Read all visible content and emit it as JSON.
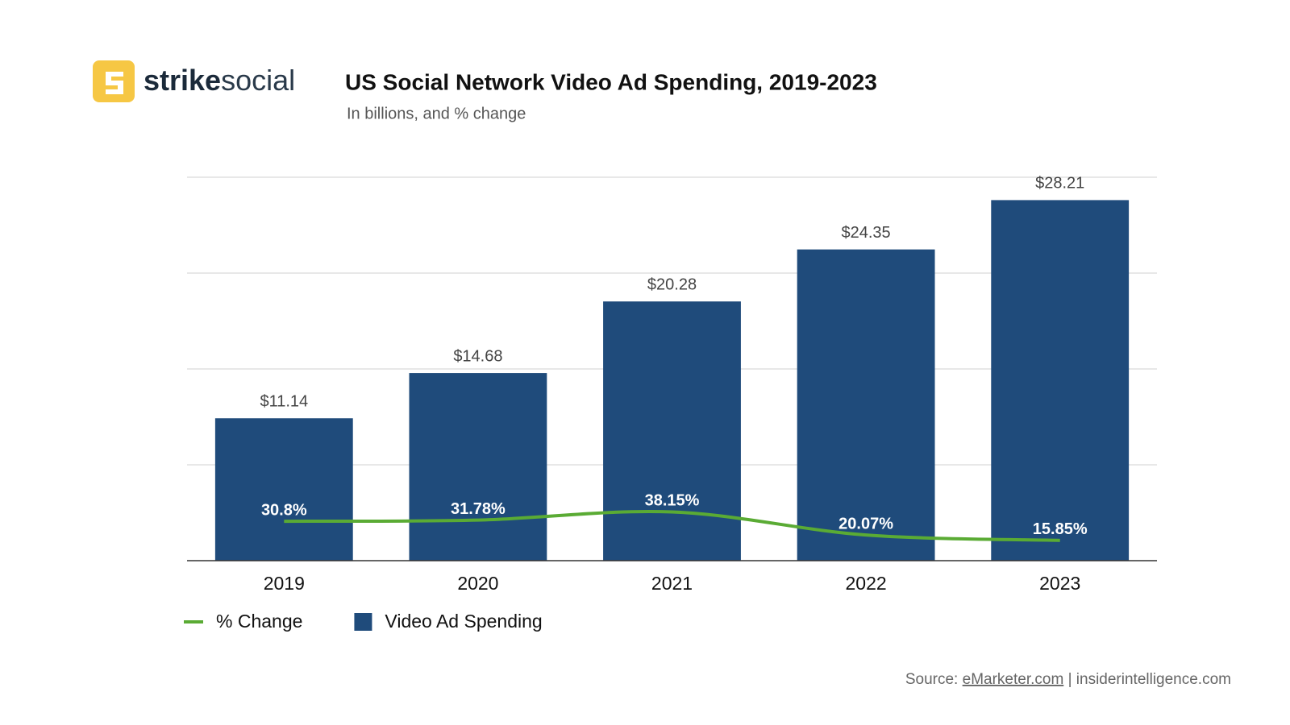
{
  "brand": {
    "bold": "strike",
    "light": "social"
  },
  "source": {
    "prefix": "Source:",
    "link": "eMarketer.com",
    "rest": "| insiderintelligence.com"
  },
  "chart_data": {
    "type": "bar",
    "title": "US Social Network Video Ad Spending, 2019-2023",
    "subtitle": "In billions, and % change",
    "categories": [
      "2019",
      "2020",
      "2021",
      "2022",
      "2023"
    ],
    "series": [
      {
        "name": "% Change",
        "type": "line",
        "axis": "y2",
        "color": "#5aab34",
        "values": [
          30.8,
          31.78,
          38.15,
          20.07,
          15.85
        ],
        "value_labels": [
          "30.8%",
          "31.78%",
          "38.15%",
          "20.07%",
          "15.85%"
        ]
      },
      {
        "name": "Video Ad Spending",
        "type": "bar",
        "color": "#1f4b7b",
        "values": [
          11.14,
          14.68,
          20.28,
          24.35,
          28.21
        ],
        "value_labels": [
          "$11.14",
          "$14.68",
          "$20.28",
          "$24.35",
          "$28.21"
        ]
      }
    ],
    "ylim": [
      0,
      30
    ],
    "yticks": [
      0,
      7.5,
      15,
      22.5,
      30
    ],
    "y2lim": [
      0,
      300
    ],
    "grid": true
  }
}
